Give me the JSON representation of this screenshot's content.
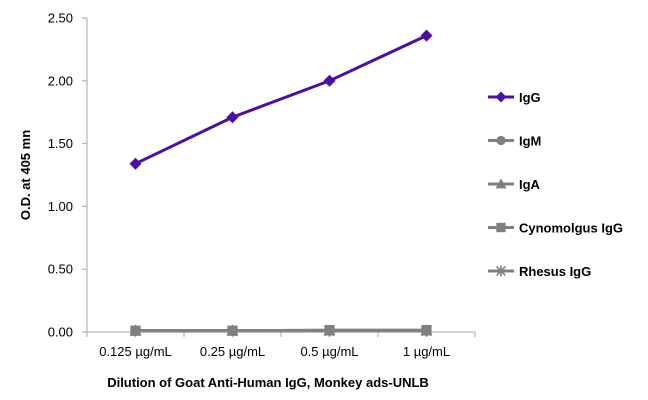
{
  "chart_data": {
    "type": "line",
    "title": "",
    "xlabel": "Dilution of Goat Anti-Human IgG, Monkey ads-UNLB",
    "ylabel": "O.D. at 405 mn",
    "categories": [
      "0.125 µg/mL",
      "0.25 µg/mL",
      "0.5 µg/mL",
      "1 µg/mL"
    ],
    "ylim": [
      0,
      2.5
    ],
    "yticks": [
      "0.00",
      "0.50",
      "1.00",
      "1.50",
      "2.00",
      "2.50"
    ],
    "grid": false,
    "legend_position": "right",
    "series": [
      {
        "name": "IgG",
        "values": [
          1.34,
          1.71,
          2.0,
          2.36
        ],
        "color": "#4B0FA8",
        "marker": "diamond"
      },
      {
        "name": "IgM",
        "values": [
          0.01,
          0.01,
          0.01,
          0.01
        ],
        "color": "#808080",
        "marker": "circle"
      },
      {
        "name": "IgA",
        "values": [
          0.01,
          0.01,
          0.01,
          0.01
        ],
        "color": "#808080",
        "marker": "triangle"
      },
      {
        "name": "Cynomolgus IgG",
        "values": [
          0.01,
          0.01,
          0.015,
          0.015
        ],
        "color": "#808080",
        "marker": "square"
      },
      {
        "name": "Rhesus IgG",
        "values": [
          0.01,
          0.01,
          0.01,
          0.01
        ],
        "color": "#808080",
        "marker": "asterisk"
      }
    ]
  }
}
